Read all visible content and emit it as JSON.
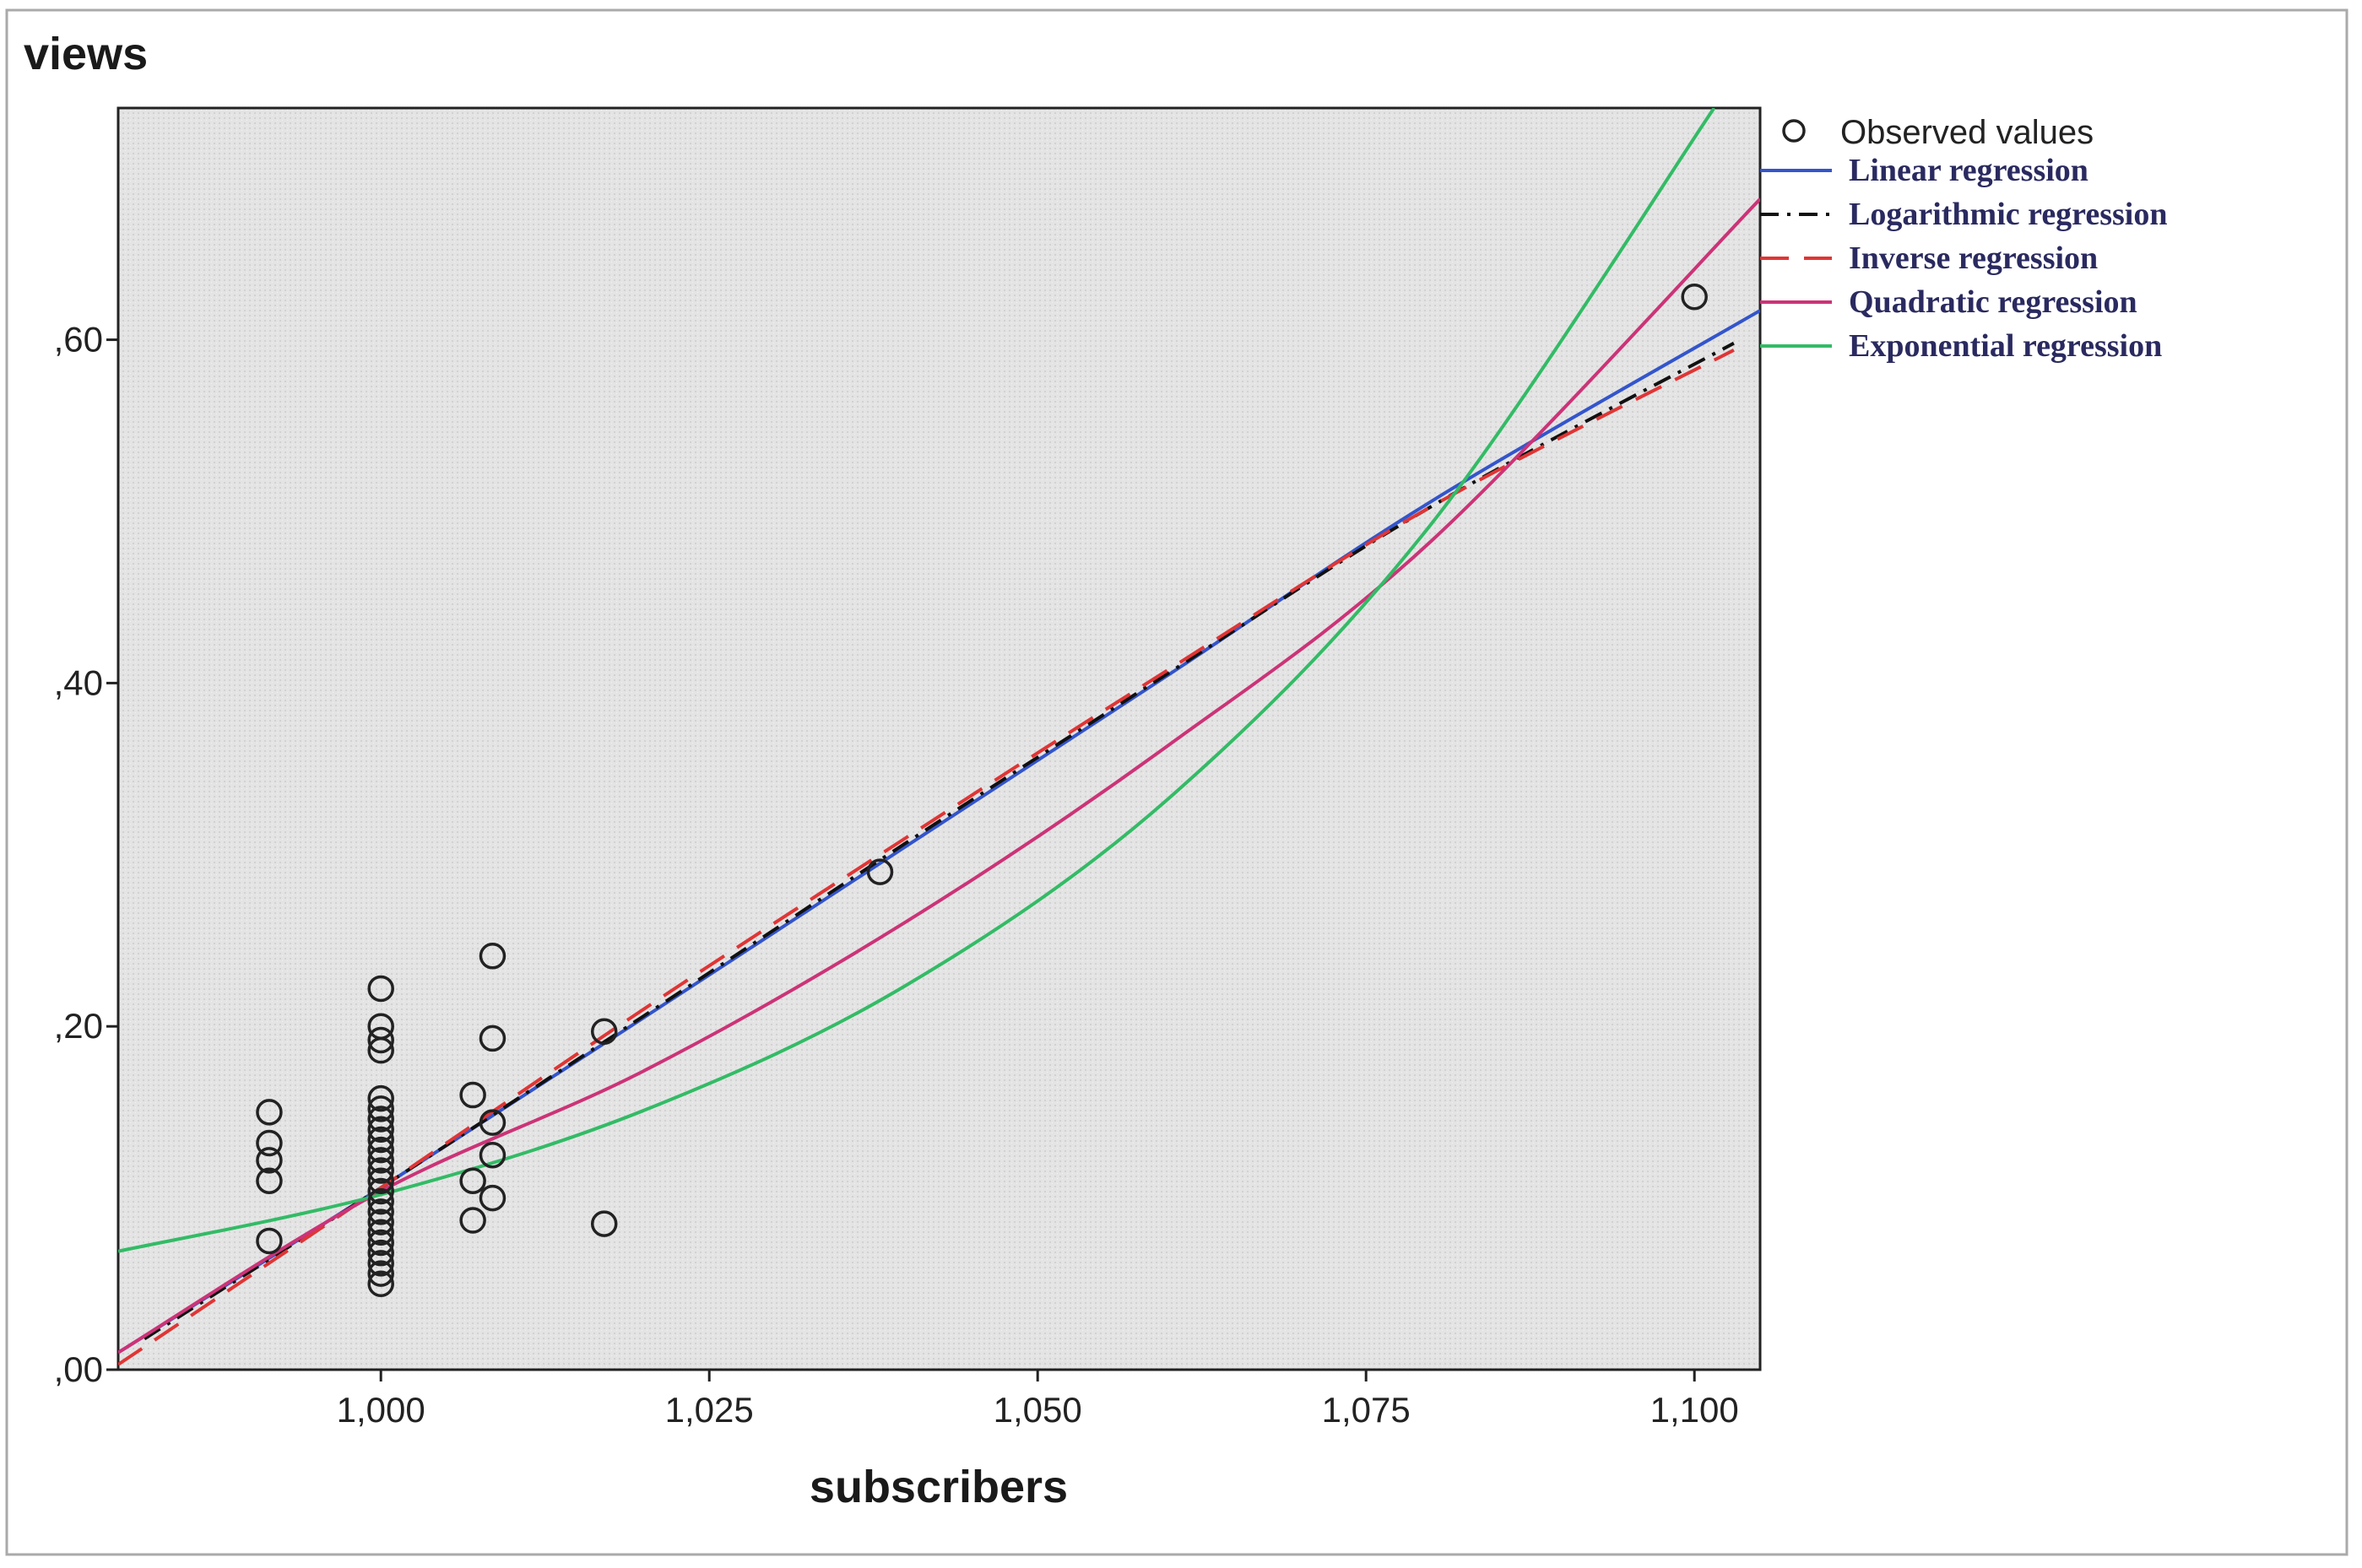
{
  "chart_data": {
    "type": "scatter",
    "title": "",
    "ylabel": "views",
    "xlabel": "subscribers",
    "xlim": [
      0.98,
      1.105
    ],
    "ylim": [
      0.0,
      0.735
    ],
    "x_ticks": [
      {
        "value": 1.0,
        "label": "1,000"
      },
      {
        "value": 1.025,
        "label": "1,025"
      },
      {
        "value": 1.05,
        "label": "1,050"
      },
      {
        "value": 1.075,
        "label": "1,075"
      },
      {
        "value": 1.1,
        "label": "1,100"
      }
    ],
    "y_ticks": [
      {
        "value": 0.0,
        "label": ",00"
      },
      {
        "value": 0.2,
        "label": ",20"
      },
      {
        "value": 0.4,
        "label": ",40"
      },
      {
        "value": 0.6,
        "label": ",60"
      }
    ],
    "grid": false,
    "plot_background": "#e6e6e6",
    "legend_position": "right",
    "observed": {
      "name": "Observed values",
      "color": "#222222",
      "points": [
        [
          0.9915,
          0.15
        ],
        [
          0.9915,
          0.132
        ],
        [
          0.9915,
          0.122
        ],
        [
          0.9915,
          0.11
        ],
        [
          0.9915,
          0.075
        ],
        [
          1.0,
          0.222
        ],
        [
          1.0,
          0.2
        ],
        [
          1.0,
          0.192
        ],
        [
          1.0,
          0.186
        ],
        [
          1.0,
          0.158
        ],
        [
          1.0,
          0.152
        ],
        [
          1.0,
          0.146
        ],
        [
          1.0,
          0.14
        ],
        [
          1.0,
          0.134
        ],
        [
          1.0,
          0.128
        ],
        [
          1.0,
          0.122
        ],
        [
          1.0,
          0.116
        ],
        [
          1.0,
          0.11
        ],
        [
          1.0,
          0.104
        ],
        [
          1.0,
          0.098
        ],
        [
          1.0,
          0.092
        ],
        [
          1.0,
          0.086
        ],
        [
          1.0,
          0.08
        ],
        [
          1.0,
          0.074
        ],
        [
          1.0,
          0.068
        ],
        [
          1.0,
          0.062
        ],
        [
          1.0,
          0.056
        ],
        [
          1.0,
          0.05
        ],
        [
          1.007,
          0.16
        ],
        [
          1.007,
          0.11
        ],
        [
          1.007,
          0.087
        ],
        [
          1.0085,
          0.241
        ],
        [
          1.0085,
          0.193
        ],
        [
          1.0085,
          0.144
        ],
        [
          1.0085,
          0.125
        ],
        [
          1.0085,
          0.1
        ],
        [
          1.017,
          0.197
        ],
        [
          1.017,
          0.085
        ],
        [
          1.038,
          0.29
        ],
        [
          1.1,
          0.625
        ]
      ]
    },
    "series": [
      {
        "name": "Linear regression",
        "color": "#3355cc",
        "dash": "none",
        "width": 4,
        "x": [
          0.98,
          1.0,
          1.02,
          1.04,
          1.06,
          1.08,
          1.105
        ],
        "y": [
          0.01,
          0.106,
          0.205,
          0.305,
          0.405,
          0.506,
          0.617
        ]
      },
      {
        "name": "Logarithmic regression",
        "color": "#111111",
        "dash": "22 10 4 10",
        "width": 4,
        "x": [
          0.982,
          1.0,
          1.02,
          1.04,
          1.06,
          1.08,
          1.103
        ],
        "y": [
          0.018,
          0.106,
          0.206,
          0.307,
          0.406,
          0.503,
          0.598
        ]
      },
      {
        "name": "Inverse regression",
        "color": "#e03535",
        "dash": "34 18",
        "width": 4,
        "x": [
          0.98,
          1.0,
          1.02,
          1.04,
          1.06,
          1.08,
          1.103
        ],
        "y": [
          0.003,
          0.106,
          0.21,
          0.31,
          0.408,
          0.503,
          0.594
        ]
      },
      {
        "name": "Quadratic regression",
        "color": "#cc3377",
        "dash": "none",
        "width": 4,
        "x": [
          0.98,
          1.0,
          1.02,
          1.04,
          1.06,
          1.08,
          1.105
        ],
        "y": [
          0.01,
          0.104,
          0.174,
          0.261,
          0.364,
          0.483,
          0.682
        ]
      },
      {
        "name": "Exponential regression",
        "color": "#33bb66",
        "dash": "none",
        "width": 4,
        "x": [
          0.98,
          1.0,
          1.02,
          1.04,
          1.06,
          1.08,
          1.1015
        ],
        "y": [
          0.069,
          0.102,
          0.151,
          0.224,
          0.333,
          0.493,
          0.735
        ]
      }
    ]
  }
}
